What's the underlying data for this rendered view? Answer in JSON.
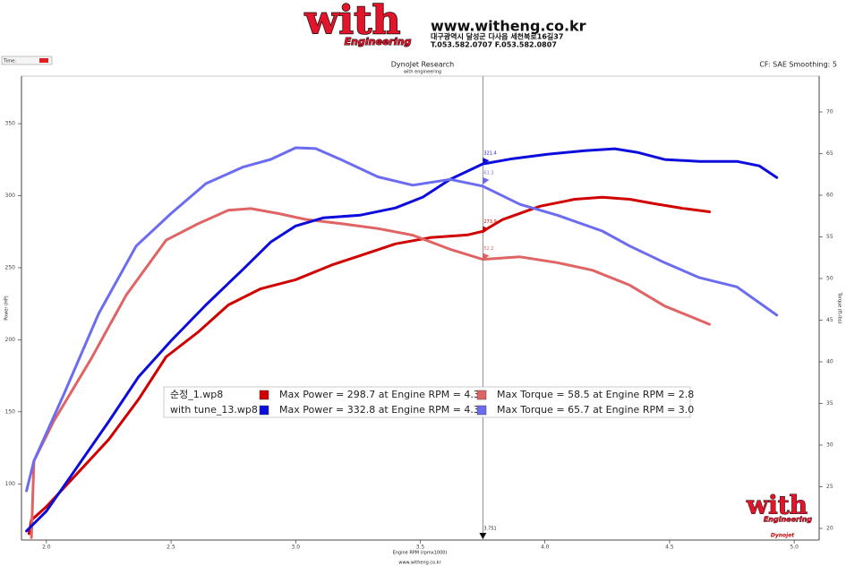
{
  "header": {
    "logo": "with",
    "logo_sub": "Engineering",
    "url": "www.witheng.co.kr",
    "address": "대구광역시 달성군 다사읍 세천북로16길37",
    "phone": "T.053.582.0707 F.053.582.0807",
    "time_label": "Time:",
    "footer": "www.witheng.co.kr",
    "brand": "Dynojet",
    "watermark": "with",
    "watermark_sub": "Engineering"
  },
  "chart_data": {
    "type": "line",
    "title": "DynoJet Research",
    "subtitle": "with engineering",
    "note": "CF: SAE Smoothing: 5",
    "x_label": "Engine RPM (rpmx1000)",
    "y_label": "Power (HP)",
    "y2_label": "Torque (ft-lbs)",
    "xlim": [
      1.9,
      5.1
    ],
    "xticks": [
      {
        "value": 2,
        "label": "2.0"
      },
      2.5,
      {
        "value": 3,
        "label": "3.0"
      },
      3.5,
      {
        "value": 4,
        "label": "4.0"
      },
      4.5,
      {
        "value": 5,
        "label": "5.0"
      }
    ],
    "ylim": [
      61,
      383
    ],
    "yticks": [
      100,
      150,
      200,
      250,
      300,
      350
    ],
    "y2lim": [
      18.6,
      74.3
    ],
    "y2ticks": [
      20,
      25,
      30,
      35,
      40,
      45,
      50,
      55,
      60,
      65,
      70
    ],
    "cursor": 3.751,
    "files": [
      "순정_1.wp8",
      "with tune_13.wp8"
    ],
    "series": [
      {
        "name": "Max Power = 298.7 at Engine RPM = 4.3",
        "color": "#d00000",
        "cursor_value": 273.9,
        "x": [
          1.93,
          1.94,
          2.0,
          2.1,
          2.25,
          2.37,
          2.48,
          2.61,
          2.73,
          2.86,
          3.0,
          3.15,
          3.26,
          3.4,
          3.54,
          3.69,
          3.75,
          3.83,
          3.98,
          4.12,
          4.23,
          4.34,
          4.44,
          4.55,
          4.66
        ],
        "values": [
          65.4,
          74.8,
          84.1,
          102.8,
          130.8,
          158.8,
          188.1,
          205.5,
          224.2,
          235.4,
          241.7,
          252.2,
          258.5,
          266.6,
          270.9,
          272.8,
          275.3,
          283.4,
          292.7,
          297.5,
          298.9,
          297.5,
          294.4,
          291.3,
          288.8
        ]
      },
      {
        "name": "Max Torque = 58.5 at Engine RPM = 2.8",
        "color": "#e06464",
        "axis": "y2",
        "cursor_value": 52.2,
        "x": [
          1.94,
          1.95,
          2.03,
          2.18,
          2.32,
          2.48,
          2.61,
          2.73,
          2.82,
          2.93,
          3.04,
          3.18,
          3.33,
          3.47,
          3.62,
          3.75,
          3.9,
          4.05,
          4.19,
          4.34,
          4.48,
          4.66
        ],
        "values": [
          18.9,
          28.1,
          32.9,
          40.4,
          48.0,
          54.6,
          56.6,
          58.2,
          58.4,
          57.8,
          57.1,
          56.6,
          56.0,
          55.2,
          53.5,
          52.3,
          52.6,
          51.9,
          51.0,
          49.2,
          46.7,
          44.5
        ]
      },
      {
        "name": "Max Power = 332.8 at Engine RPM = 4.3",
        "color": "#0c0cdc",
        "cursor_value": 321.4,
        "x": [
          1.92,
          2.0,
          2.1,
          2.25,
          2.37,
          2.5,
          2.64,
          2.79,
          2.9,
          3.0,
          3.11,
          3.26,
          3.4,
          3.51,
          3.62,
          3.75,
          3.87,
          4.01,
          4.16,
          4.28,
          4.37,
          4.48,
          4.62,
          4.77,
          4.86,
          4.93
        ],
        "values": [
          67.3,
          81.0,
          105.9,
          143.3,
          174.4,
          199.3,
          224.2,
          249.1,
          267.8,
          279.0,
          284.6,
          286.5,
          291.5,
          299.0,
          311.4,
          322.0,
          325.7,
          328.8,
          331.3,
          332.6,
          330.1,
          325.1,
          323.8,
          323.8,
          320.7,
          312.6
        ]
      },
      {
        "name": "Max Torque = 65.7 at Engine RPM = 3.0",
        "color": "#6c6cf0",
        "axis": "y2",
        "cursor_value": 61.3,
        "x": [
          1.92,
          1.95,
          2.07,
          2.21,
          2.36,
          2.5,
          2.64,
          2.79,
          2.9,
          3.0,
          3.08,
          3.18,
          3.33,
          3.47,
          3.62,
          3.75,
          3.9,
          4.05,
          4.23,
          4.34,
          4.48,
          4.62,
          4.77,
          4.93
        ],
        "values": [
          24.5,
          28.1,
          36.1,
          45.8,
          53.9,
          57.8,
          61.4,
          63.4,
          64.3,
          65.7,
          65.6,
          64.3,
          62.2,
          61.2,
          61.9,
          61.1,
          58.9,
          57.6,
          55.7,
          53.9,
          51.9,
          50.1,
          49.0,
          45.6
        ]
      }
    ]
  }
}
